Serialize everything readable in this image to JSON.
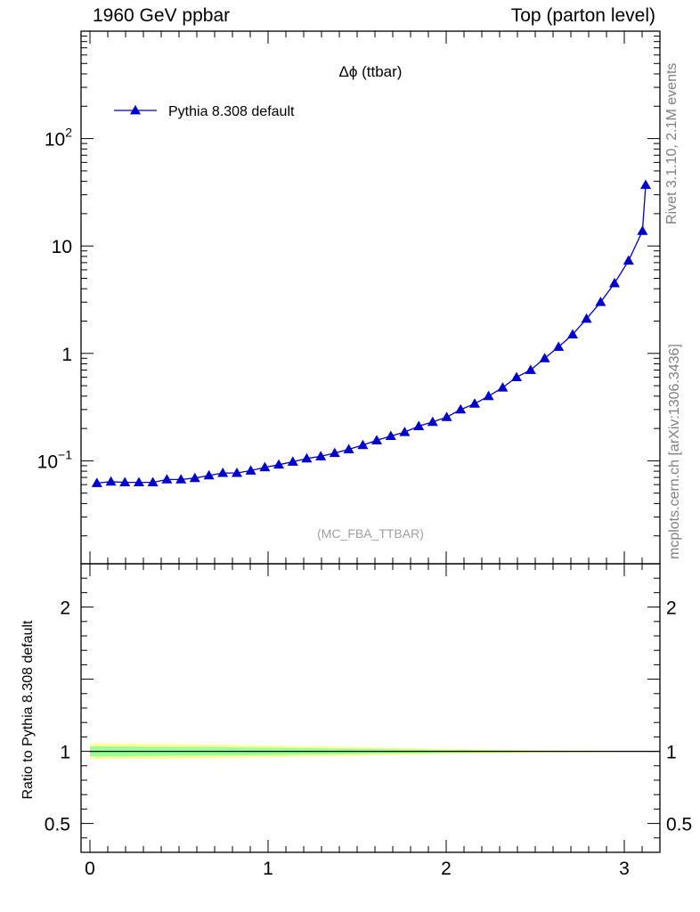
{
  "header": {
    "left": "1960 GeV ppbar",
    "right": "Top (parton level)"
  },
  "side_labels": {
    "rivet": "Rivet 3.1.10,  2.1M events",
    "mcplots": "mcplots.cern.ch [arXiv:1306.3436]"
  },
  "colors": {
    "series": "#0000cc",
    "band_outer": "#ffff99",
    "band_inner": "#99ff99",
    "watermark": "#a0a0a0"
  },
  "chart_data": [
    {
      "type": "line",
      "title": "Δϕ (ttbar)",
      "analysis_tag": "(MC_FBA_TTBAR)",
      "yscale": "log",
      "xlim": [
        -0.05,
        3.2
      ],
      "ylim": [
        0.011,
        1000
      ],
      "yticks": [
        {
          "value": 100,
          "base": "10",
          "exp": "2"
        },
        {
          "value": 10,
          "base": "10",
          "exp": ""
        },
        {
          "value": 1,
          "base": "1",
          "exp": ""
        },
        {
          "value": 0.1,
          "base": "10",
          "exp": "−1"
        }
      ],
      "legend_position": "top-left",
      "series": [
        {
          "name": "Pythia 8.308 default",
          "marker": "triangle",
          "x": [
            0.039,
            0.118,
            0.196,
            0.275,
            0.353,
            0.432,
            0.511,
            0.589,
            0.668,
            0.746,
            0.825,
            0.903,
            0.982,
            1.06,
            1.139,
            1.217,
            1.296,
            1.374,
            1.453,
            1.532,
            1.61,
            1.689,
            1.767,
            1.846,
            1.924,
            2.003,
            2.081,
            2.16,
            2.238,
            2.317,
            2.395,
            2.474,
            2.553,
            2.631,
            2.71,
            2.788,
            2.867,
            2.945,
            3.024,
            3.102
          ],
          "y": [
            0.062,
            0.064,
            0.063,
            0.063,
            0.063,
            0.067,
            0.067,
            0.069,
            0.073,
            0.077,
            0.077,
            0.081,
            0.087,
            0.092,
            0.098,
            0.105,
            0.11,
            0.118,
            0.128,
            0.14,
            0.155,
            0.17,
            0.185,
            0.21,
            0.23,
            0.255,
            0.3,
            0.34,
            0.4,
            0.48,
            0.6,
            0.7,
            0.9,
            1.15,
            1.5,
            2.1,
            3.0,
            4.5,
            7.3,
            13.8
          ]
        }
      ]
    },
    {
      "type": "line",
      "ylabel": "Ratio to Pythia 8.308 default",
      "xlim": [
        -0.05,
        3.2
      ],
      "ylim": [
        0.3,
        2.3
      ],
      "xticks": [
        0,
        1,
        2,
        3
      ],
      "yticks": [
        0.5,
        1,
        2
      ],
      "series": [
        {
          "name": "Pythia 8.308 default",
          "x": [
            0,
            3.102
          ],
          "y": [
            1,
            1
          ]
        }
      ],
      "band": {
        "x": [
          0.0,
          0.5,
          1.0,
          1.5,
          2.0,
          2.5,
          3.0,
          3.14
        ],
        "outer": [
          0.055,
          0.05,
          0.04,
          0.03,
          0.018,
          0.009,
          0.004,
          0.003
        ],
        "inner": [
          0.035,
          0.03,
          0.025,
          0.018,
          0.01,
          0.005,
          0.002,
          0.0015
        ]
      }
    }
  ]
}
